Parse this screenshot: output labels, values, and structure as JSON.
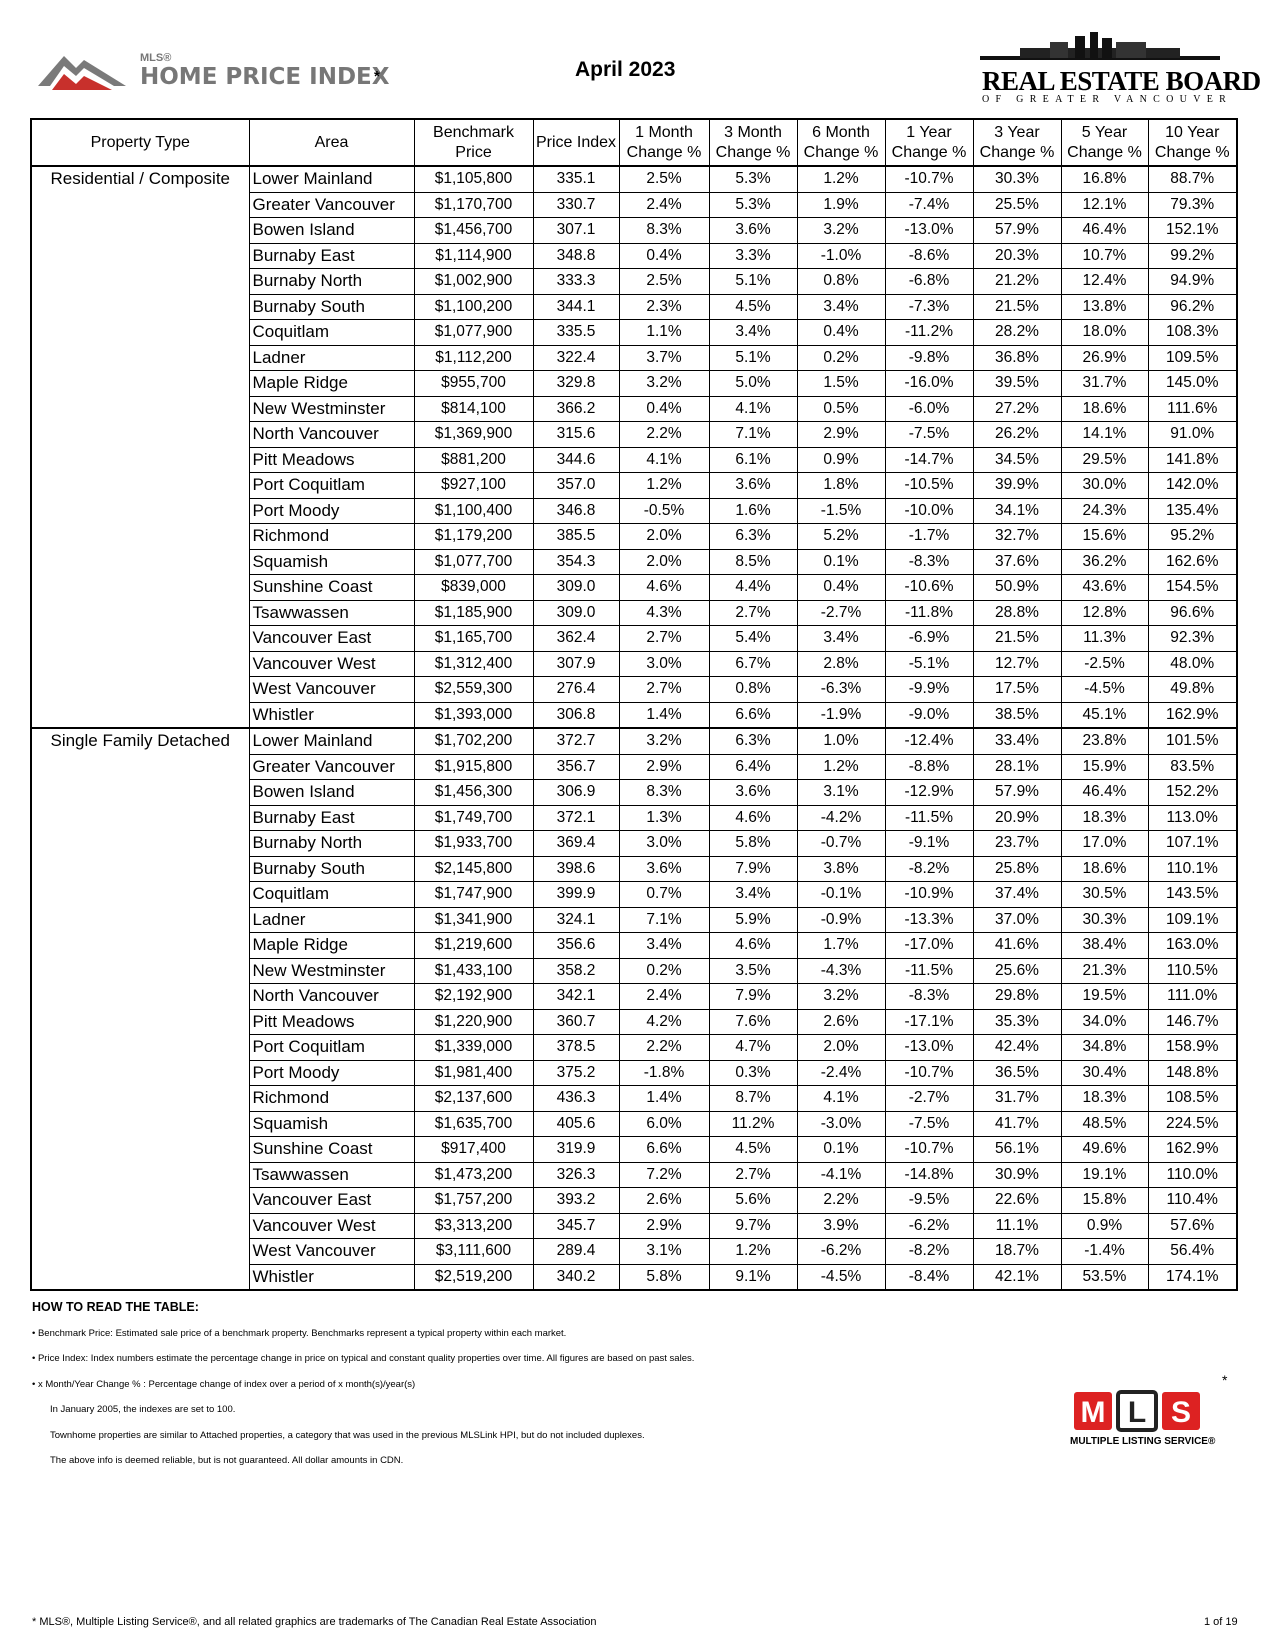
{
  "header": {
    "left_logo": {
      "superscript": "MLS®",
      "name": "HOME PRICE INDEX",
      "mark": "*"
    },
    "title": "April 2023",
    "right_logo": {
      "name": "REAL ESTATE BOARD",
      "subtitle": "OF GREATER VANCOUVER"
    }
  },
  "table": {
    "columns": [
      "Property Type",
      "Area",
      "Benchmark Price",
      "Price Index",
      "1 Month Change %",
      "3 Month Change %",
      "6 Month Change %",
      "1 Year Change %",
      "3 Year Change %",
      "5 Year Change %",
      "10 Year Change %"
    ],
    "groups": [
      {
        "property_type": "Residential / Composite",
        "rows": [
          [
            "Lower Mainland",
            "$1,105,800",
            "335.1",
            "2.5%",
            "5.3%",
            "1.2%",
            "-10.7%",
            "30.3%",
            "16.8%",
            "88.7%"
          ],
          [
            "Greater Vancouver",
            "$1,170,700",
            "330.7",
            "2.4%",
            "5.3%",
            "1.9%",
            "-7.4%",
            "25.5%",
            "12.1%",
            "79.3%"
          ],
          [
            "Bowen Island",
            "$1,456,700",
            "307.1",
            "8.3%",
            "3.6%",
            "3.2%",
            "-13.0%",
            "57.9%",
            "46.4%",
            "152.1%"
          ],
          [
            "Burnaby East",
            "$1,114,900",
            "348.8",
            "0.4%",
            "3.3%",
            "-1.0%",
            "-8.6%",
            "20.3%",
            "10.7%",
            "99.2%"
          ],
          [
            "Burnaby North",
            "$1,002,900",
            "333.3",
            "2.5%",
            "5.1%",
            "0.8%",
            "-6.8%",
            "21.2%",
            "12.4%",
            "94.9%"
          ],
          [
            "Burnaby South",
            "$1,100,200",
            "344.1",
            "2.3%",
            "4.5%",
            "3.4%",
            "-7.3%",
            "21.5%",
            "13.8%",
            "96.2%"
          ],
          [
            "Coquitlam",
            "$1,077,900",
            "335.5",
            "1.1%",
            "3.4%",
            "0.4%",
            "-11.2%",
            "28.2%",
            "18.0%",
            "108.3%"
          ],
          [
            "Ladner",
            "$1,112,200",
            "322.4",
            "3.7%",
            "5.1%",
            "0.2%",
            "-9.8%",
            "36.8%",
            "26.9%",
            "109.5%"
          ],
          [
            "Maple Ridge",
            "$955,700",
            "329.8",
            "3.2%",
            "5.0%",
            "1.5%",
            "-16.0%",
            "39.5%",
            "31.7%",
            "145.0%"
          ],
          [
            "New Westminster",
            "$814,100",
            "366.2",
            "0.4%",
            "4.1%",
            "0.5%",
            "-6.0%",
            "27.2%",
            "18.6%",
            "111.6%"
          ],
          [
            "North Vancouver",
            "$1,369,900",
            "315.6",
            "2.2%",
            "7.1%",
            "2.9%",
            "-7.5%",
            "26.2%",
            "14.1%",
            "91.0%"
          ],
          [
            "Pitt Meadows",
            "$881,200",
            "344.6",
            "4.1%",
            "6.1%",
            "0.9%",
            "-14.7%",
            "34.5%",
            "29.5%",
            "141.8%"
          ],
          [
            "Port Coquitlam",
            "$927,100",
            "357.0",
            "1.2%",
            "3.6%",
            "1.8%",
            "-10.5%",
            "39.9%",
            "30.0%",
            "142.0%"
          ],
          [
            "Port Moody",
            "$1,100,400",
            "346.8",
            "-0.5%",
            "1.6%",
            "-1.5%",
            "-10.0%",
            "34.1%",
            "24.3%",
            "135.4%"
          ],
          [
            "Richmond",
            "$1,179,200",
            "385.5",
            "2.0%",
            "6.3%",
            "5.2%",
            "-1.7%",
            "32.7%",
            "15.6%",
            "95.2%"
          ],
          [
            "Squamish",
            "$1,077,700",
            "354.3",
            "2.0%",
            "8.5%",
            "0.1%",
            "-8.3%",
            "37.6%",
            "36.2%",
            "162.6%"
          ],
          [
            "Sunshine Coast",
            "$839,000",
            "309.0",
            "4.6%",
            "4.4%",
            "0.4%",
            "-10.6%",
            "50.9%",
            "43.6%",
            "154.5%"
          ],
          [
            "Tsawwassen",
            "$1,185,900",
            "309.0",
            "4.3%",
            "2.7%",
            "-2.7%",
            "-11.8%",
            "28.8%",
            "12.8%",
            "96.6%"
          ],
          [
            "Vancouver East",
            "$1,165,700",
            "362.4",
            "2.7%",
            "5.4%",
            "3.4%",
            "-6.9%",
            "21.5%",
            "11.3%",
            "92.3%"
          ],
          [
            "Vancouver West",
            "$1,312,400",
            "307.9",
            "3.0%",
            "6.7%",
            "2.8%",
            "-5.1%",
            "12.7%",
            "-2.5%",
            "48.0%"
          ],
          [
            "West Vancouver",
            "$2,559,300",
            "276.4",
            "2.7%",
            "0.8%",
            "-6.3%",
            "-9.9%",
            "17.5%",
            "-4.5%",
            "49.8%"
          ],
          [
            "Whistler",
            "$1,393,000",
            "306.8",
            "1.4%",
            "6.6%",
            "-1.9%",
            "-9.0%",
            "38.5%",
            "45.1%",
            "162.9%"
          ]
        ]
      },
      {
        "property_type": "Single Family Detached",
        "rows": [
          [
            "Lower Mainland",
            "$1,702,200",
            "372.7",
            "3.2%",
            "6.3%",
            "1.0%",
            "-12.4%",
            "33.4%",
            "23.8%",
            "101.5%"
          ],
          [
            "Greater Vancouver",
            "$1,915,800",
            "356.7",
            "2.9%",
            "6.4%",
            "1.2%",
            "-8.8%",
            "28.1%",
            "15.9%",
            "83.5%"
          ],
          [
            "Bowen Island",
            "$1,456,300",
            "306.9",
            "8.3%",
            "3.6%",
            "3.1%",
            "-12.9%",
            "57.9%",
            "46.4%",
            "152.2%"
          ],
          [
            "Burnaby East",
            "$1,749,700",
            "372.1",
            "1.3%",
            "4.6%",
            "-4.2%",
            "-11.5%",
            "20.9%",
            "18.3%",
            "113.0%"
          ],
          [
            "Burnaby North",
            "$1,933,700",
            "369.4",
            "3.0%",
            "5.8%",
            "-0.7%",
            "-9.1%",
            "23.7%",
            "17.0%",
            "107.1%"
          ],
          [
            "Burnaby South",
            "$2,145,800",
            "398.6",
            "3.6%",
            "7.9%",
            "3.8%",
            "-8.2%",
            "25.8%",
            "18.6%",
            "110.1%"
          ],
          [
            "Coquitlam",
            "$1,747,900",
            "399.9",
            "0.7%",
            "3.4%",
            "-0.1%",
            "-10.9%",
            "37.4%",
            "30.5%",
            "143.5%"
          ],
          [
            "Ladner",
            "$1,341,900",
            "324.1",
            "7.1%",
            "5.9%",
            "-0.9%",
            "-13.3%",
            "37.0%",
            "30.3%",
            "109.1%"
          ],
          [
            "Maple Ridge",
            "$1,219,600",
            "356.6",
            "3.4%",
            "4.6%",
            "1.7%",
            "-17.0%",
            "41.6%",
            "38.4%",
            "163.0%"
          ],
          [
            "New Westminster",
            "$1,433,100",
            "358.2",
            "0.2%",
            "3.5%",
            "-4.3%",
            "-11.5%",
            "25.6%",
            "21.3%",
            "110.5%"
          ],
          [
            "North Vancouver",
            "$2,192,900",
            "342.1",
            "2.4%",
            "7.9%",
            "3.2%",
            "-8.3%",
            "29.8%",
            "19.5%",
            "111.0%"
          ],
          [
            "Pitt Meadows",
            "$1,220,900",
            "360.7",
            "4.2%",
            "7.6%",
            "2.6%",
            "-17.1%",
            "35.3%",
            "34.0%",
            "146.7%"
          ],
          [
            "Port Coquitlam",
            "$1,339,000",
            "378.5",
            "2.2%",
            "4.7%",
            "2.0%",
            "-13.0%",
            "42.4%",
            "34.8%",
            "158.9%"
          ],
          [
            "Port Moody",
            "$1,981,400",
            "375.2",
            "-1.8%",
            "0.3%",
            "-2.4%",
            "-10.7%",
            "36.5%",
            "30.4%",
            "148.8%"
          ],
          [
            "Richmond",
            "$2,137,600",
            "436.3",
            "1.4%",
            "8.7%",
            "4.1%",
            "-2.7%",
            "31.7%",
            "18.3%",
            "108.5%"
          ],
          [
            "Squamish",
            "$1,635,700",
            "405.6",
            "6.0%",
            "11.2%",
            "-3.0%",
            "-7.5%",
            "41.7%",
            "48.5%",
            "224.5%"
          ],
          [
            "Sunshine Coast",
            "$917,400",
            "319.9",
            "6.6%",
            "4.5%",
            "0.1%",
            "-10.7%",
            "56.1%",
            "49.6%",
            "162.9%"
          ],
          [
            "Tsawwassen",
            "$1,473,200",
            "326.3",
            "7.2%",
            "2.7%",
            "-4.1%",
            "-14.8%",
            "30.9%",
            "19.1%",
            "110.0%"
          ],
          [
            "Vancouver East",
            "$1,757,200",
            "393.2",
            "2.6%",
            "5.6%",
            "2.2%",
            "-9.5%",
            "22.6%",
            "15.8%",
            "110.4%"
          ],
          [
            "Vancouver West",
            "$3,313,200",
            "345.7",
            "2.9%",
            "9.7%",
            "3.9%",
            "-6.2%",
            "11.1%",
            "0.9%",
            "57.6%"
          ],
          [
            "West Vancouver",
            "$3,111,600",
            "289.4",
            "3.1%",
            "1.2%",
            "-6.2%",
            "-8.2%",
            "18.7%",
            "-1.4%",
            "56.4%"
          ],
          [
            "Whistler",
            "$2,519,200",
            "340.2",
            "5.8%",
            "9.1%",
            "-4.5%",
            "-8.4%",
            "42.1%",
            "53.5%",
            "174.1%"
          ]
        ]
      }
    ]
  },
  "notes": {
    "heading": "HOW TO READ THE TABLE:",
    "items": [
      "• Benchmark Price:  Estimated sale price of a benchmark property. Benchmarks represent a typical property within each market.",
      "• Price Index:  Index numbers estimate the percentage change in price on typical and constant  quality properties over time. All figures are based on past sales.",
      "• x Month/Year Change % :  Percentage change of index over a period of x month(s)/year(s)",
      "In January 2005, the indexes are set to 100.",
      "Townhome properties are similar to Attached properties, a category that was used in the previous MLSLink HPI, but do not included duplexes.",
      "The above info is deemed reliable, but is not guaranteed. All dollar amounts in CDN."
    ]
  },
  "mls_logo": {
    "letters": [
      "M",
      "L",
      "S"
    ],
    "caption": "MULTIPLE LISTING SERVICE®",
    "mark": "*"
  },
  "footer": {
    "note": "* MLS®, Multiple Listing Service®, and all related graphics are trademarks of The Canadian Real Estate Association",
    "page": "1 of 19"
  }
}
